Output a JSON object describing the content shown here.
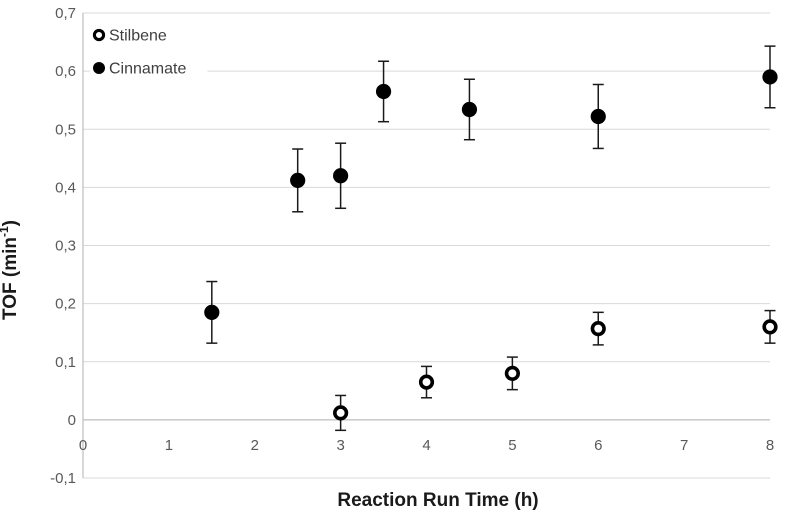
{
  "chart_data": {
    "type": "scatter",
    "title": "",
    "xlabel": "Reaction Run Time (h)",
    "ylabel": "TOF (min⁻¹)",
    "ylabel_parts": {
      "pre": "TOF (min",
      "sup": "-1",
      "post": ")"
    },
    "xlim": [
      0,
      8
    ],
    "ylim": [
      -0.1,
      0.7
    ],
    "x_ticks": [
      0,
      1,
      2,
      3,
      4,
      5,
      6,
      7,
      8
    ],
    "x_tick_labels": [
      "0",
      "1",
      "2",
      "3",
      "4",
      "5",
      "6",
      "7",
      "8"
    ],
    "y_ticks": [
      0.7,
      0.6,
      0.5,
      0.4,
      0.3,
      0.2,
      0.1,
      0,
      -0.1
    ],
    "y_tick_labels": [
      "0,7",
      "0,6",
      "0,5",
      "0,4",
      "0,3",
      "0,2",
      "0,1",
      "0",
      "-0,1"
    ],
    "decimal_separator": ",",
    "grid": true,
    "legend": {
      "position": "top-left-inside",
      "entries": [
        {
          "label": "Stilbene",
          "marker": "open-circle"
        },
        {
          "label": "Cinnamate",
          "marker": "filled-circle"
        }
      ]
    },
    "series": [
      {
        "name": "Stilbene",
        "marker": "open-circle",
        "color": "#000000",
        "points": [
          {
            "x": 3,
            "y": 0.012,
            "yerr": 0.03
          },
          {
            "x": 4,
            "y": 0.065,
            "yerr": 0.027
          },
          {
            "x": 5,
            "y": 0.08,
            "yerr": 0.028
          },
          {
            "x": 6,
            "y": 0.157,
            "yerr": 0.028
          },
          {
            "x": 8,
            "y": 0.16,
            "yerr": 0.028
          }
        ]
      },
      {
        "name": "Cinnamate",
        "marker": "filled-circle",
        "color": "#000000",
        "points": [
          {
            "x": 1.5,
            "y": 0.185,
            "yerr": 0.053
          },
          {
            "x": 2.5,
            "y": 0.412,
            "yerr": 0.054
          },
          {
            "x": 3,
            "y": 0.42,
            "yerr": 0.056
          },
          {
            "x": 3.5,
            "y": 0.565,
            "yerr": 0.052
          },
          {
            "x": 4.5,
            "y": 0.534,
            "yerr": 0.052
          },
          {
            "x": 6,
            "y": 0.522,
            "yerr": 0.055
          },
          {
            "x": 8,
            "y": 0.59,
            "yerr": 0.053
          }
        ]
      }
    ]
  },
  "style": {
    "background": "#ffffff",
    "gridline_color": "#d9d9d9",
    "axis_line_color": "#bfbfbf",
    "tick_label_color": "#595959",
    "axis_title_color": "#1a1a1a",
    "legend_text_color": "#3f3f3f",
    "marker_color": "#000000",
    "error_bar_color": "#1a1a1a"
  }
}
